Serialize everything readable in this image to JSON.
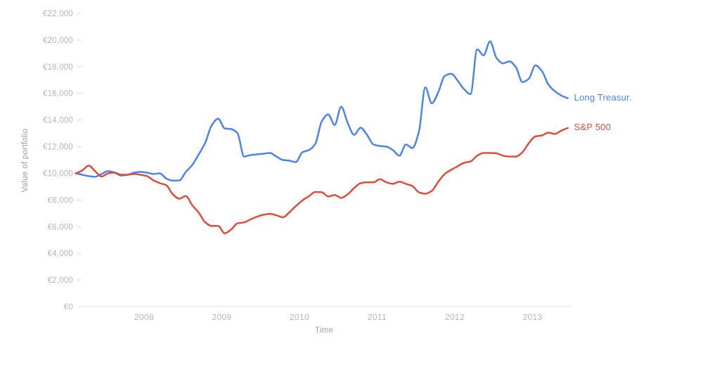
{
  "chart_data": {
    "type": "line",
    "title": "",
    "xlabel": "Time",
    "ylabel": "Value of portfolio",
    "grid": "none",
    "legend_position": "right-of-line-end",
    "ylim": [
      0,
      22000
    ],
    "xlim_decimal_years": [
      2007.1,
      2013.5
    ],
    "x_unit": "decimal_year_monthly",
    "x": [
      2007.12,
      2007.203,
      2007.287,
      2007.37,
      2007.453,
      2007.537,
      2007.62,
      2007.703,
      2007.787,
      2007.87,
      2007.953,
      2008.037,
      2008.12,
      2008.203,
      2008.287,
      2008.37,
      2008.453,
      2008.537,
      2008.62,
      2008.703,
      2008.787,
      2008.87,
      2008.953,
      2009.037,
      2009.12,
      2009.203,
      2009.287,
      2009.37,
      2009.453,
      2009.537,
      2009.62,
      2009.703,
      2009.787,
      2009.87,
      2009.953,
      2010.037,
      2010.12,
      2010.203,
      2010.287,
      2010.37,
      2010.453,
      2010.537,
      2010.62,
      2010.703,
      2010.787,
      2010.87,
      2010.953,
      2011.037,
      2011.12,
      2011.203,
      2011.287,
      2011.37,
      2011.453,
      2011.537,
      2011.62,
      2011.703,
      2011.787,
      2011.87,
      2011.953,
      2012.037,
      2012.12,
      2012.203,
      2012.287,
      2012.37,
      2012.453,
      2012.537,
      2012.62,
      2012.703,
      2012.787,
      2012.87,
      2012.953,
      2013.037,
      2013.12,
      2013.203,
      2013.287,
      2013.37,
      2013.453
    ],
    "series": [
      {
        "name": "Long Treasur.",
        "color": "#4a82f0",
        "values": [
          10000,
          9890,
          9790,
          9740,
          9950,
          10160,
          10050,
          9840,
          9890,
          10050,
          10110,
          10050,
          9950,
          10000,
          9600,
          9450,
          9470,
          10100,
          10630,
          11420,
          12300,
          13600,
          14100,
          13370,
          13320,
          13000,
          11260,
          11370,
          11420,
          11470,
          11530,
          11260,
          11000,
          10950,
          10840,
          11580,
          11740,
          12200,
          13900,
          14420,
          13630,
          15000,
          13790,
          12890,
          13420,
          12890,
          12160,
          12050,
          12000,
          11740,
          11320,
          12160,
          11890,
          13100,
          16450,
          15250,
          16100,
          17300,
          17470,
          16950,
          16300,
          15950,
          19300,
          18850,
          19900,
          18650,
          18250,
          18400,
          17950,
          16840,
          17100,
          18100,
          17680,
          16680,
          16160,
          15840,
          15630
        ]
      },
      {
        "name": "S&P 500",
        "color": "#e04c3c",
        "values": [
          10000,
          10210,
          10580,
          10150,
          9760,
          10000,
          10050,
          9890,
          9890,
          9950,
          9890,
          9790,
          9470,
          9260,
          9100,
          8420,
          8100,
          8300,
          7600,
          7050,
          6320,
          6050,
          6050,
          5500,
          5780,
          6250,
          6320,
          6540,
          6740,
          6890,
          6960,
          6850,
          6700,
          7070,
          7540,
          7960,
          8280,
          8600,
          8580,
          8260,
          8370,
          8160,
          8420,
          8890,
          9260,
          9320,
          9320,
          9560,
          9320,
          9210,
          9370,
          9210,
          9050,
          8580,
          8470,
          8680,
          9370,
          9950,
          10260,
          10530,
          10790,
          10890,
          11320,
          11530,
          11530,
          11500,
          11320,
          11260,
          11260,
          11580,
          12260,
          12770,
          12840,
          13050,
          12950,
          13200,
          13400
        ]
      }
    ],
    "y_axis": {
      "ticks": [
        {
          "value": 0,
          "label": "€0"
        },
        {
          "value": 2000,
          "label": "€2,000"
        },
        {
          "value": 4000,
          "label": "€4,000"
        },
        {
          "value": 6000,
          "label": "€6,000"
        },
        {
          "value": 8000,
          "label": "€8,000"
        },
        {
          "value": 10000,
          "label": "€10,000"
        },
        {
          "value": 12000,
          "label": "€12,000"
        },
        {
          "value": 14000,
          "label": "€14,000"
        },
        {
          "value": 16000,
          "label": "€16,000"
        },
        {
          "value": 18000,
          "label": "€18,000"
        },
        {
          "value": 20000,
          "label": "€20,000"
        },
        {
          "value": 22000,
          "label": "€22,000"
        }
      ]
    },
    "x_axis": {
      "ticks": [
        {
          "value": 2008,
          "label": "2008"
        },
        {
          "value": 2009,
          "label": "2009"
        },
        {
          "value": 2010,
          "label": "2010"
        },
        {
          "value": 2011,
          "label": "2011"
        },
        {
          "value": 2012,
          "label": "2012"
        },
        {
          "value": 2013,
          "label": "2013"
        }
      ]
    },
    "colors": {
      "tick_label": "#b2b6bb",
      "axis_title": "#9aa0a6",
      "tick_mark": "#d2d5d8",
      "axis_line": "#e4e6e8",
      "background": "#ffffff"
    }
  }
}
